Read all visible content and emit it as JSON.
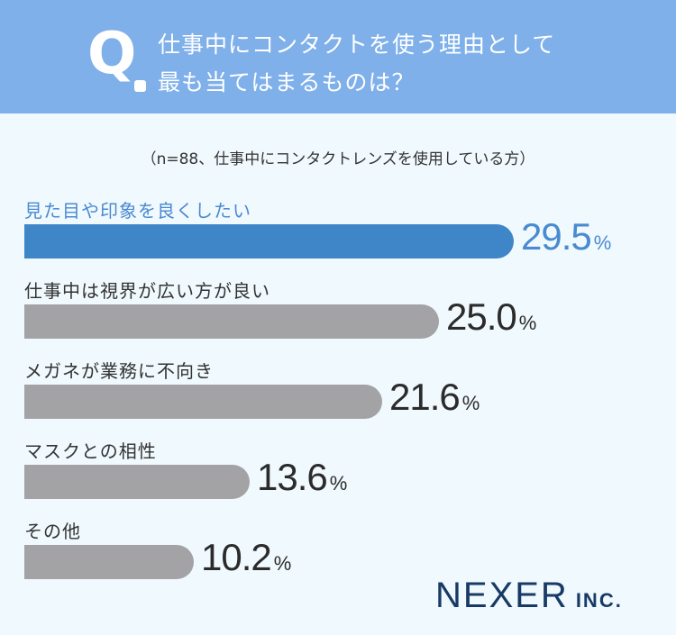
{
  "header": {
    "q_letter": "Q",
    "question_line1": "仕事中にコンタクトを使う理由として",
    "question_line2": "最も当てはまるものは？"
  },
  "subtitle": "（n=88、仕事中にコンタクトレンズを使用している方）",
  "chart_data": {
    "type": "bar",
    "orientation": "horizontal",
    "categories": [
      "見た目や印象を良くしたい",
      "仕事中は視界が広い方が良い",
      "メガネが業務に不向き",
      "マスクとの相性",
      "その他"
    ],
    "values": [
      29.5,
      25.0,
      21.6,
      13.6,
      10.2
    ],
    "value_labels": [
      "29.5",
      "25.0",
      "21.6",
      "13.6",
      "10.2"
    ],
    "unit": "%",
    "highlight_index": 0,
    "colors": {
      "highlight": "#3f86c8",
      "default": "#a3a3a6",
      "highlight_text": "#4a8ad0"
    }
  },
  "logo": {
    "main": "NEXER",
    "sub": "INC."
  }
}
